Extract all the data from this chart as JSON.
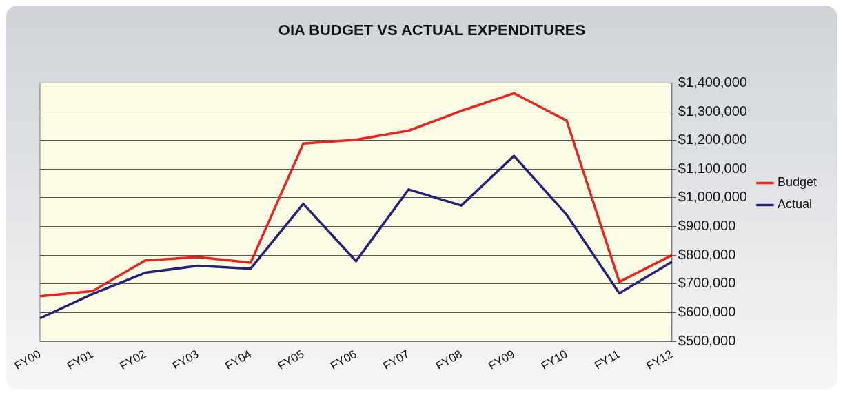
{
  "chart_data": {
    "type": "line",
    "title": "OIA BUDGET VS ACTUAL EXPENDITURES",
    "categories": [
      "FY00",
      "FY01",
      "FY02",
      "FY03",
      "FY04",
      "FY05",
      "FY06",
      "FY07",
      "FY08",
      "FY09",
      "FY10",
      "FY11",
      "FY12"
    ],
    "series": [
      {
        "name": "Budget",
        "color": "#e8251f",
        "values": [
          657000,
          675000,
          782000,
          793000,
          774000,
          1189000,
          1202000,
          1234000,
          1303000,
          1364000,
          1269000,
          707000,
          800000
        ]
      },
      {
        "name": "Actual",
        "color": "#26217a",
        "values": [
          580000,
          665000,
          739000,
          763000,
          753000,
          979000,
          779000,
          1029000,
          973000,
          1146000,
          941000,
          667000,
          777000
        ]
      }
    ],
    "ylim": [
      500000,
      1400000
    ],
    "yticks": [
      {
        "value": 500000,
        "label": "$500,000"
      },
      {
        "value": 600000,
        "label": "$600,000"
      },
      {
        "value": 700000,
        "label": "$700,000"
      },
      {
        "value": 800000,
        "label": "$800,000"
      },
      {
        "value": 900000,
        "label": "$900,000"
      },
      {
        "value": 1000000,
        "label": "$1,000,000"
      },
      {
        "value": 1100000,
        "label": "$1,100,000"
      },
      {
        "value": 1200000,
        "label": "$1,200,000"
      },
      {
        "value": 1300000,
        "label": "$1,300,000"
      },
      {
        "value": 1400000,
        "label": "$1,400,000"
      }
    ],
    "grid": "y",
    "legend": "right",
    "marker": "none",
    "line_style": "solid"
  }
}
